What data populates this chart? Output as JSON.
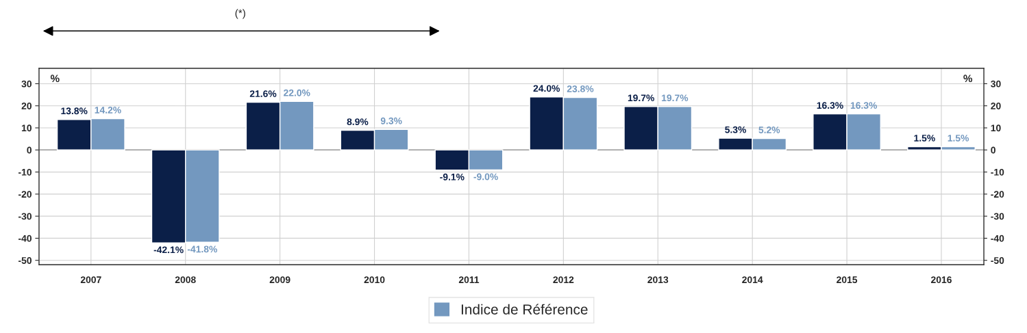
{
  "chart_data": {
    "type": "bar",
    "categories": [
      "2007",
      "2008",
      "2009",
      "2010",
      "2011",
      "2012",
      "2013",
      "2014",
      "2015",
      "2016"
    ],
    "series": [
      {
        "color": "#0b1f48",
        "values": [
          13.8,
          -42.1,
          21.6,
          8.9,
          -9.1,
          24.0,
          19.7,
          5.3,
          16.3,
          1.5
        ],
        "value_labels": [
          "13.8%",
          "-42.1%",
          "21.6%",
          "8.9%",
          "-9.1%",
          "24.0%",
          "19.7%",
          "5.3%",
          "16.3%",
          "1.5%"
        ]
      },
      {
        "name": "Indice de Référence",
        "color": "#7398bf",
        "values": [
          14.2,
          -41.8,
          22.0,
          9.3,
          -9.0,
          23.8,
          19.7,
          5.2,
          16.3,
          1.5
        ],
        "value_labels": [
          "14.2%",
          "-41.8%",
          "22.0%",
          "9.3%",
          "-9.0%",
          "23.8%",
          "19.7%",
          "5.2%",
          "16.3%",
          "1.5%"
        ]
      }
    ],
    "ylabel": "%",
    "y2label": "%",
    "ylim": [
      -52,
      37
    ],
    "yticks": [
      -50,
      -40,
      -30,
      -20,
      -10,
      0,
      10,
      20,
      30
    ],
    "y2lim": [
      -52,
      37
    ],
    "y2ticks": [
      -50,
      -40,
      -30,
      -20,
      -10,
      0,
      10,
      20,
      30
    ],
    "annotations": [
      "(*)"
    ],
    "grid": true,
    "legend": "bottom"
  }
}
